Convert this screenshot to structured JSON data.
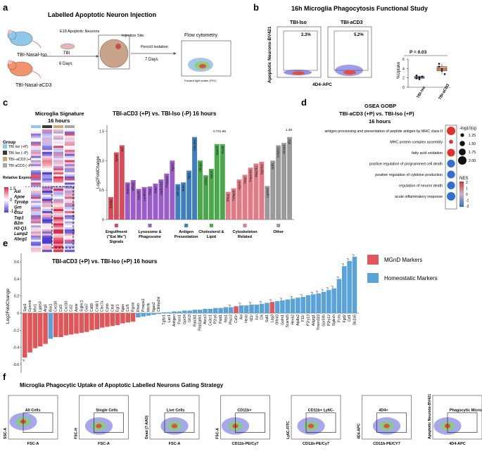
{
  "panels": {
    "a": {
      "letter": "a",
      "title": "Labelled Apoptotic Neuron Injection",
      "mouse_iso": "TBI-Nasal-Iso",
      "mouse_cd3": "TBI-Nasal-aCD3",
      "neurons": "E18 Apoptotic Neurons",
      "tbi": "TBI",
      "six_days": "6 Days",
      "injection_site": "Injection Site",
      "percoll": "Percoll Isolation",
      "seven_days": "7 Days",
      "flow": "Flow cytometry",
      "flow_x": "Forward light scatter (FSC)",
      "flow_y": "Side light scatter (SSC)"
    },
    "b": {
      "letter": "b",
      "title": "16h Microglia Phagocytosis Functional Study",
      "plot1_title": "TBI-Iso",
      "plot2_title": "TBI-aCD3",
      "plot1_pct": "2.3%",
      "plot2_pct": "5.2%",
      "ylabel": "Apoptotic Neurons-BV421",
      "xlabel": "4D4-APC",
      "pvalue": "P = 0.03",
      "box_ylabel": "%Uptake",
      "box_cat1": "TBI-Iso",
      "box_cat2": "TBI-aCD3",
      "box_yticks": [
        "0",
        "2",
        "4",
        "6"
      ]
    },
    "c": {
      "letter": "c",
      "heatmap_title": "Microglia Signature",
      "heatmap_subtitle": "16 hours",
      "group_label": "Group",
      "groups": [
        "TBI Iso (+P)",
        "TBI Iso (−P)",
        "TBI−aCD3 (+P)",
        "TBI aCD3 (−P)"
      ],
      "group_colors": [
        "#8ecae6",
        "#3a3a3a",
        "#d4a373",
        "#a8a8a8"
      ],
      "expr_label": "Relative Expression",
      "expr_ticks": [
        "1.5",
        "0",
        "-1.5"
      ],
      "heat_genes": [
        "Axl",
        "Apoe",
        "Tyrobp",
        "Grn",
        "Ctsz",
        "Tap1",
        "B2m",
        "H2-Q1",
        "Lamp2",
        "Abcg1"
      ],
      "bar_title": "TBI-aCD3 (+P) vs. TBI-Iso (-P) 16 hours",
      "ylabel": "Log2FoldChange",
      "yticks": [
        "0",
        "0.5",
        "1.0",
        "1.5"
      ],
      "categories": [
        "Engulfment (\"Eat Me\") Signals",
        "Lysosome & Phagosome",
        "Antigen Presentation",
        "Cholesterol & Lipid",
        "Cytoskeleton Related",
        "Other"
      ],
      "category_colors": [
        "#d94b57",
        "#9a5cc6",
        "#3f7fbf",
        "#48a84a",
        "#e07b85",
        "#9a9a9a"
      ],
      "annot1": "0.73",
      "annot2": "1.86",
      "annot3": "1.48"
    },
    "d": {
      "letter": "d",
      "title1": "GSEA GOBP",
      "title2": "TBI-aCD3 (+P) vs. TBI-Iso (+P)",
      "title3": "16 hours",
      "terms": [
        "antigen processing and presentation of peptide antigen by MHC class II",
        "MHC protein complex assembly",
        "fatty acid oxidation",
        "positive regulation of programmed cell death",
        "positive regulation of cytokine production",
        "regulation of neuron death",
        "acute inflammatory response"
      ],
      "legend_q": "-log10(q)",
      "q_ticks": [
        "1.25",
        "1.50",
        "1.75",
        "2.00"
      ],
      "legend_nes": "NES",
      "nes_ticks": [
        "2",
        "1",
        "0",
        "-1",
        "-2"
      ]
    },
    "e": {
      "letter": "e",
      "title": "TBI-aCD3 (+P) vs. TBI-Iso (+P) 16 hours",
      "ylabel": "Log2FoldChange",
      "yticks": [
        "0.6",
        "0.4",
        "0.2",
        "0",
        "-0.2",
        "-0.4",
        "-0.6"
      ],
      "legend_mgnd": "MGnD Markers",
      "legend_homeo": "Homeostatic Markers",
      "mgnd_color": "#e15759",
      "homeo_color": "#5aa3d8",
      "sig_mark": "*p"
    },
    "f": {
      "letter": "f",
      "title": "Microglia Phagocytic Uptake of Apoptotic Labelled Neurons Gating Strategy",
      "gates": [
        {
          "x": "FSC-A",
          "y": "SSC-A",
          "gate": "All Cells"
        },
        {
          "x": "FSC-A",
          "y": "FSC-H",
          "gate": "Single Cells"
        },
        {
          "x": "FSC-A",
          "y": "Dead (7-AAD)",
          "gate": "Live Cells"
        },
        {
          "x": "CD11b-PE/Cy7",
          "y": "FSC-A",
          "gate": "CD11b+"
        },
        {
          "x": "CD11b-PE/Cy7",
          "y": "Ly6C-FITC",
          "gate": "CD11b+ Ly6C-"
        },
        {
          "x": "CD11b-PE/CY7",
          "y": "4D4-APC",
          "gate": "4D4+"
        },
        {
          "x": "4D4-APC",
          "y": "Apoptotic Neurons-BV421",
          "gate": "Phagocytic Microglia"
        }
      ]
    }
  },
  "chart_data": [
    {
      "type": "bar",
      "panel": "c",
      "title": "TBI-aCD3 (+P) vs. TBI-Iso (-P) 16 hours",
      "ylabel": "Log2FoldChange",
      "ylim": [
        0,
        1.6
      ],
      "categories": [
        "Tyrobp",
        "Apoe",
        "Axl",
        "Rab7a",
        "Mfsd1",
        "Vps35",
        "Lamtor2",
        "Ctsz",
        "Rab7",
        "Atp6v1b2",
        "Pmepa1",
        "Irgm1",
        "H2-Q1",
        "B2m",
        "Tap1",
        "Clec4a1",
        "Abcg1",
        "Cd1a",
        "Npc2",
        "Apoc2",
        "Acsl4",
        "Rhoa",
        "Tnfaip8",
        "Arpc4",
        "Vasp",
        "Tmem54",
        "Map3k1",
        "Sqstm1",
        "Lgals9",
        "Sdf1",
        "Tnfsf10",
        "Anxa4",
        "Ifit2"
      ],
      "values": [
        0.38,
        1.14,
        1.26,
        0.63,
        0.67,
        0.52,
        0.55,
        0.56,
        0.61,
        0.68,
        0.78,
        1.0,
        0.6,
        0.63,
        0.83,
        1.4,
        1.0,
        0.75,
        0.86,
        1.28,
        1.28,
        0.47,
        0.53,
        0.68,
        0.76,
        0.88,
        0.95,
        0.98,
        0.57,
        1.0,
        1.26,
        1.3,
        1.4
      ],
      "groups": [
        "Engulfment (\"Eat Me\") Signals",
        "Engulfment (\"Eat Me\") Signals",
        "Engulfment (\"Eat Me\") Signals",
        "Lysosome & Phagosome",
        "Lysosome & Phagosome",
        "Lysosome & Phagosome",
        "Lysosome & Phagosome",
        "Lysosome & Phagosome",
        "Lysosome & Phagosome",
        "Lysosome & Phagosome",
        "Lysosome & Phagosome",
        "Lysosome & Phagosome",
        "Antigen Presentation",
        "Antigen Presentation",
        "Antigen Presentation",
        "Antigen Presentation",
        "Cholesterol & Lipid",
        "Cholesterol & Lipid",
        "Cholesterol & Lipid",
        "Cholesterol & Lipid",
        "Cholesterol & Lipid",
        "Cytoskeleton Related",
        "Cytoskeleton Related",
        "Cytoskeleton Related",
        "Cytoskeleton Related",
        "Cytoskeleton Related",
        "Cytoskeleton Related",
        "Cytoskeleton Related",
        "Other",
        "Other",
        "Other",
        "Other",
        "Other"
      ]
    },
    {
      "type": "bar",
      "panel": "e",
      "title": "TBI-aCD3 (+P) vs. TBI-Iso (+P) 16 hours",
      "ylabel": "Log2FoldChange",
      "ylim": [
        -0.7,
        0.7
      ],
      "categories": [
        "Spp1",
        "Gpnmb",
        "Msr1",
        "Lgals3",
        "Arg1",
        "Bax1",
        "Cxcl16",
        "Ccl3",
        "Cxcl10",
        "Ccl2",
        "Apoe",
        "Siglec1",
        "Gas7",
        "Cd68",
        "Cmklr1",
        "Clec7a",
        "Cybb",
        "Ctsd",
        "Egr1",
        "Itgax",
        "Ccr5",
        "Rgmb",
        "Rhob",
        "Pmepa1",
        "Mertk",
        "Itgax2",
        "Cttnbp2nl",
        "Tgfbr1",
        "Lair1",
        "Antigen",
        "Fscn1",
        "Gpr34",
        "Gfr2l",
        "Rab3il1",
        "Rap1gds1",
        "Abcc3",
        "Cx3cr1",
        "P2ry6",
        "Pald1",
        "Nrp1",
        "Plscr2",
        "Csf1r",
        "Axl",
        "Hexb",
        "Il21r",
        "Jun",
        "Clk",
        "Sall1",
        "Lag3",
        "Olfml3",
        "Golm1",
        "Scamp5",
        "Hexb2",
        "Atp8a2",
        "F11r",
        "P2ry13",
        "Adgrg1",
        "Tmem119",
        "Gpr34b",
        "P2ry12",
        "Siglech",
        "Fcrls",
        "Fgd2",
        "Csf1",
        "Slc2a5"
      ],
      "values": [
        -0.52,
        -0.46,
        -0.41,
        -0.39,
        -0.36,
        -0.3,
        -0.28,
        -0.28,
        -0.26,
        -0.25,
        -0.24,
        -0.23,
        -0.22,
        -0.2,
        -0.19,
        -0.17,
        -0.16,
        -0.15,
        -0.14,
        -0.12,
        -0.11,
        -0.1,
        -0.05,
        -0.04,
        -0.03,
        -0.02,
        -0.01,
        0.01,
        0.01,
        0.02,
        0.02,
        0.03,
        0.03,
        0.04,
        0.04,
        0.05,
        0.05,
        0.06,
        0.06,
        0.07,
        0.07,
        0.08,
        0.09,
        0.09,
        0.1,
        0.1,
        0.11,
        0.12,
        0.13,
        0.14,
        0.15,
        0.16,
        0.17,
        0.18,
        0.19,
        0.21,
        0.22,
        0.23,
        0.25,
        0.27,
        0.29,
        0.4,
        0.55,
        0.61,
        0.66
      ],
      "marker_type": [
        "MGnD",
        "MGnD",
        "MGnD",
        "MGnD",
        "MGnD",
        "Homeo",
        "MGnD",
        "MGnD",
        "MGnD",
        "MGnD",
        "MGnD",
        "MGnD",
        "MGnD",
        "MGnD",
        "MGnD",
        "MGnD",
        "MGnD",
        "MGnD",
        "MGnD",
        "MGnD",
        "MGnD",
        "MGnD",
        "Homeo",
        "Homeo",
        "Homeo",
        "Homeo",
        "Homeo",
        "Homeo",
        "Homeo",
        "Homeo",
        "Homeo",
        "Homeo",
        "Homeo",
        "Homeo",
        "Homeo",
        "Homeo",
        "Homeo",
        "Homeo",
        "Homeo",
        "Homeo",
        "Homeo",
        "MGnD",
        "Homeo",
        "Homeo",
        "Homeo",
        "Homeo",
        "Homeo",
        "Homeo",
        "MGnD",
        "Homeo",
        "Homeo",
        "Homeo",
        "Homeo",
        "Homeo",
        "Homeo",
        "Homeo",
        "Homeo",
        "Homeo",
        "Homeo",
        "Homeo",
        "Homeo",
        "Homeo",
        "Homeo",
        "Homeo",
        "Homeo"
      ]
    },
    {
      "type": "scatter",
      "panel": "d",
      "title": "GSEA GOBP",
      "categories": [
        "antigen processing and presentation of peptide antigen by MHC class II",
        "MHC protein complex assembly",
        "fatty acid oxidation",
        "positive regulation of programmed cell death",
        "positive regulation of cytokine production",
        "regulation of neuron death",
        "acute inflammatory response"
      ],
      "nes": [
        2.0,
        1.8,
        1.8,
        -1.7,
        -1.7,
        -1.7,
        -2.0
      ],
      "neg_log10_q": [
        2.0,
        1.3,
        1.9,
        1.9,
        1.9,
        1.9,
        2.0
      ]
    },
    {
      "type": "bar",
      "panel": "b",
      "title": "%Uptake",
      "categories": [
        "TBI-Iso",
        "TBI-aCD3"
      ],
      "values": [
        2.2,
        3.9
      ],
      "ylim": [
        0,
        6
      ],
      "points": [
        [
          1.9,
          2.1,
          2.3,
          2.5,
          1.7
        ],
        [
          5.0,
          3.5,
          2.8,
          4.4,
          3.9
        ]
      ]
    }
  ]
}
